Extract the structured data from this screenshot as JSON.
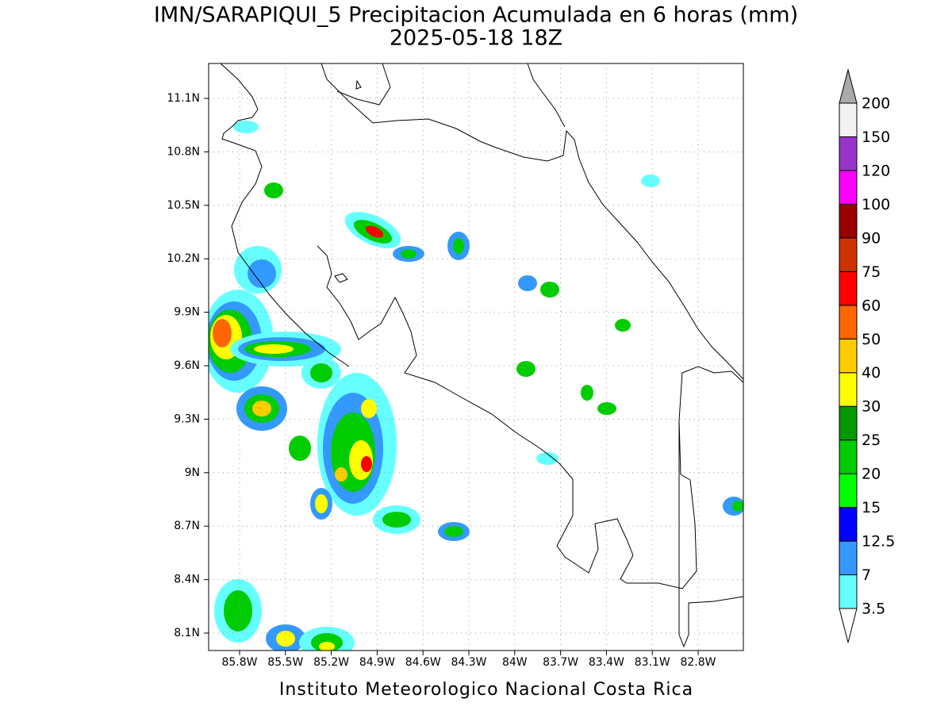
{
  "title": [
    "IMN/SARAPIQUI_5 Precipitacion Acumulada en 6 horas (mm)",
    "2025-05-18 18Z"
  ],
  "map": {
    "lon_labels": [
      "85.8W",
      "85.5W",
      "85.2W",
      "84.9W",
      "84.6W",
      "84.3W",
      "84W",
      "83.7W",
      "83.4W",
      "83.1W",
      "82.8W"
    ],
    "lat_labels": [
      "11.1N",
      "10.8N",
      "10.5N",
      "10.2N",
      "9.9N",
      "9.6N",
      "9.3N",
      "9N",
      "8.7N",
      "8.4N",
      "8.1N"
    ],
    "grid": true
  },
  "colorbar": {
    "levels": [
      "3.5",
      "7",
      "12.5",
      "15",
      "20",
      "25",
      "30",
      "40",
      "50",
      "60",
      "75",
      "90",
      "100",
      "120",
      "150",
      "200"
    ],
    "colors": [
      "#66ffff",
      "#3399ff",
      "#0000ff",
      "#00ff00",
      "#00cc00",
      "#009900",
      "#ffff00",
      "#ffcc00",
      "#ff6600",
      "#ff0000",
      "#cc3300",
      "#990000",
      "#ff00ff",
      "#9933cc",
      "#f2f2f2"
    ],
    "below_color": "#ffffff",
    "above_color": "#aaaaaa"
  },
  "footer": "Instituto Meteorologico Nacional Costa Rica"
}
